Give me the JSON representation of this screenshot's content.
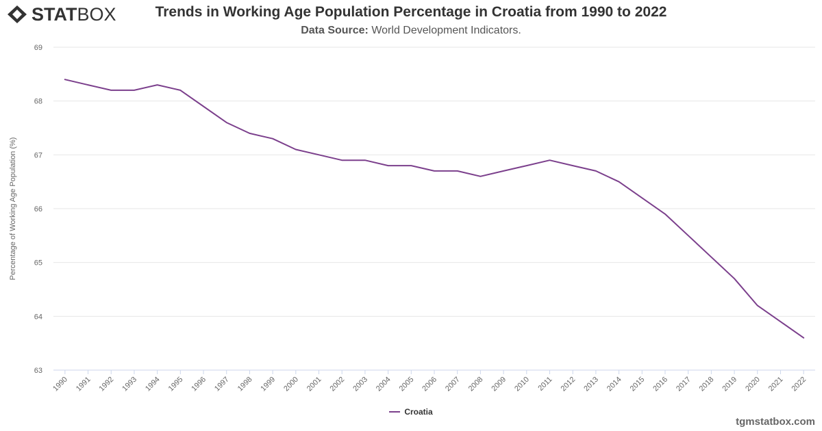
{
  "logo": {
    "text_bold": "STAT",
    "text_light": "BOX"
  },
  "header": {
    "title": "Trends in Working Age Population Percentage in Croatia from 1990 to 2022",
    "subtitle_label": "Data Source:",
    "subtitle_value": "World Development Indicators."
  },
  "credit": "tgmstatbox.com",
  "colors": {
    "series": "#7b3f8c",
    "grid": "#e6e6e6",
    "axis_text": "#666666"
  },
  "chart_data": {
    "type": "line",
    "title": "Trends in Working Age Population Percentage in Croatia from 1990 to 2022",
    "ylabel": "Percentage of Working Age Population (%)",
    "xlabel": "",
    "ylim": [
      63,
      69
    ],
    "yticks": [
      63,
      64,
      65,
      66,
      67,
      68,
      69
    ],
    "grid": true,
    "legend_position": "bottom-center",
    "x": [
      "1990",
      "1991",
      "1992",
      "1993",
      "1994",
      "1995",
      "1996",
      "1997",
      "1998",
      "1999",
      "2000",
      "2001",
      "2002",
      "2003",
      "2004",
      "2005",
      "2006",
      "2007",
      "2008",
      "2009",
      "2010",
      "2011",
      "2012",
      "2013",
      "2014",
      "2015",
      "2016",
      "2017",
      "2018",
      "2019",
      "2020",
      "2021",
      "2022"
    ],
    "series": [
      {
        "name": "Croatia",
        "color": "#7b3f8c",
        "values": [
          68.4,
          68.3,
          68.2,
          68.2,
          68.3,
          68.2,
          67.9,
          67.6,
          67.4,
          67.3,
          67.1,
          67.0,
          66.9,
          66.9,
          66.8,
          66.8,
          66.7,
          66.7,
          66.6,
          66.7,
          66.8,
          66.9,
          66.8,
          66.7,
          66.5,
          66.2,
          65.9,
          65.5,
          65.1,
          64.7,
          64.2,
          63.9,
          63.6
        ]
      }
    ]
  }
}
